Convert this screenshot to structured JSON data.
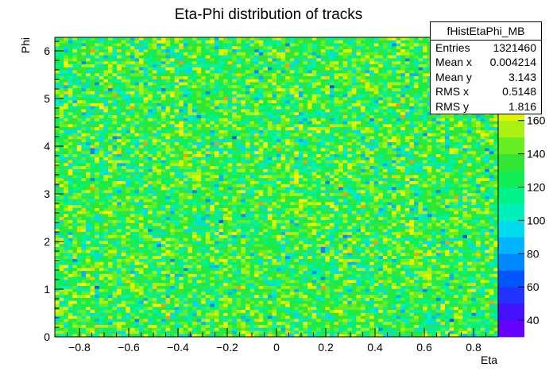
{
  "chart_data": {
    "type": "heatmap",
    "title": "Eta-Phi distribution of tracks",
    "xlabel": "Eta",
    "ylabel": "Phi",
    "xlim": [
      -0.9,
      0.9
    ],
    "ylim": [
      0,
      6.2832
    ],
    "x_ticks": [
      "−0.8",
      "−0.6",
      "−0.4",
      "−0.2",
      "0",
      "0.2",
      "0.4",
      "0.6",
      "0.8"
    ],
    "x_tick_values": [
      -0.8,
      -0.6,
      -0.4,
      -0.2,
      0,
      0.2,
      0.4,
      0.6,
      0.8
    ],
    "y_ticks": [
      "0",
      "1",
      "2",
      "3",
      "4",
      "5",
      "6"
    ],
    "y_tick_values": [
      0,
      1,
      2,
      3,
      4,
      5,
      6
    ],
    "bins": {
      "eta": 100,
      "phi": 100
    },
    "z_range": [
      30,
      210
    ],
    "z_ticks": [
      "40",
      "60",
      "80",
      "100",
      "120",
      "140",
      "160"
    ],
    "z_tick_values": [
      40,
      60,
      80,
      100,
      120,
      140,
      160
    ],
    "z_mean": 132,
    "palette": [
      "#6600ff",
      "#4411ff",
      "#2233ff",
      "#0055ff",
      "#0088ff",
      "#00b4ff",
      "#00dcee",
      "#00f0bb",
      "#00f28a",
      "#11ee55",
      "#33e633",
      "#66ee22",
      "#aaf011",
      "#ddf400",
      "#ffee00",
      "#ffcc00",
      "#ff9900",
      "#ff6600"
    ],
    "grid": false,
    "legend": "top-right"
  },
  "stats": {
    "name": "fHistEtaPhi_MB",
    "rows": [
      {
        "label": "Entries",
        "value": "1321460"
      },
      {
        "label": "Mean x",
        "value": "0.004214"
      },
      {
        "label": "Mean y",
        "value": "3.143"
      },
      {
        "label": "RMS x",
        "value": "0.5148"
      },
      {
        "label": "RMS y",
        "value": "1.816"
      }
    ]
  }
}
